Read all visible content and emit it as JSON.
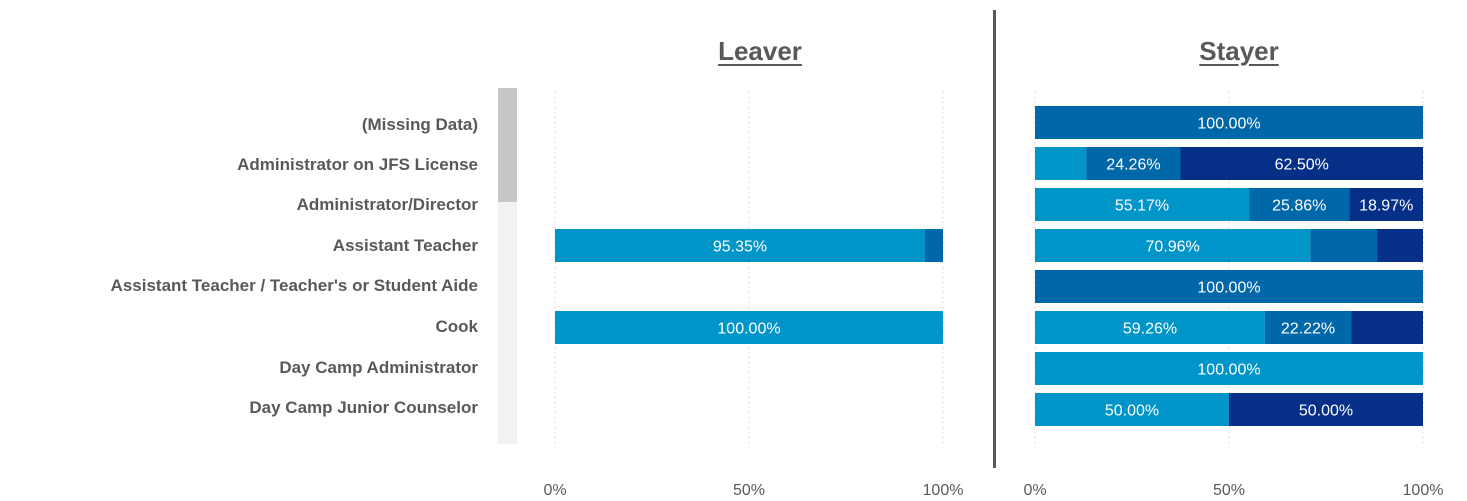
{
  "chart_data": {
    "type": "bar",
    "stacked": true,
    "orientation": "horizontal",
    "categories": [
      "(Missing Data)",
      "Administrator on JFS License",
      "Administrator/Director",
      "Assistant Teacher",
      "Assistant Teacher / Teacher's or Student Aide",
      "Cook",
      "Day Camp Administrator",
      "Day Camp Junior Counselor"
    ],
    "xlim": [
      0,
      100
    ],
    "x_ticks": [
      "0%",
      "50%",
      "100%"
    ],
    "grid": true,
    "colors": [
      "#0095c9",
      "#0068a8",
      "#062f87"
    ],
    "panels": [
      {
        "title": "Leaver",
        "rows": [
          null,
          null,
          null,
          {
            "segments": [
              {
                "value": 95.35,
                "label": "95.35%",
                "color": "#0095c9"
              },
              {
                "value": 4.65,
                "label": "",
                "color": "#0068a8"
              }
            ]
          },
          null,
          {
            "segments": [
              {
                "value": 100.0,
                "label": "100.00%",
                "color": "#0095c9"
              }
            ]
          },
          null,
          null
        ]
      },
      {
        "title": "Stayer",
        "rows": [
          {
            "segments": [
              {
                "value": 100.0,
                "label": "100.00%",
                "color": "#0068a8"
              }
            ]
          },
          {
            "segments": [
              {
                "value": 13.24,
                "label": "",
                "color": "#0095c9"
              },
              {
                "value": 24.26,
                "label": "24.26%",
                "color": "#0068a8"
              },
              {
                "value": 62.5,
                "label": "62.50%",
                "color": "#062f87"
              }
            ]
          },
          {
            "segments": [
              {
                "value": 55.17,
                "label": "55.17%",
                "color": "#0095c9"
              },
              {
                "value": 25.86,
                "label": "25.86%",
                "color": "#0068a8"
              },
              {
                "value": 18.97,
                "label": "18.97%",
                "color": "#062f87"
              }
            ]
          },
          {
            "segments": [
              {
                "value": 70.96,
                "label": "70.96%",
                "color": "#0095c9"
              },
              {
                "value": 17.2,
                "label": "",
                "color": "#0068a8"
              },
              {
                "value": 11.84,
                "label": "",
                "color": "#062f87"
              }
            ]
          },
          {
            "segments": [
              {
                "value": 100.0,
                "label": "100.00%",
                "color": "#0068a8"
              }
            ]
          },
          {
            "segments": [
              {
                "value": 59.26,
                "label": "59.26%",
                "color": "#0095c9"
              },
              {
                "value": 22.22,
                "label": "22.22%",
                "color": "#0068a8"
              },
              {
                "value": 18.52,
                "label": "",
                "color": "#062f87"
              }
            ]
          },
          {
            "segments": [
              {
                "value": 100.0,
                "label": "100.00%",
                "color": "#0095c9"
              }
            ]
          },
          {
            "segments": [
              {
                "value": 50.0,
                "label": "50.00%",
                "color": "#0095c9"
              },
              {
                "value": 50.0,
                "label": "50.00%",
                "color": "#062f87"
              }
            ]
          }
        ]
      }
    ]
  }
}
